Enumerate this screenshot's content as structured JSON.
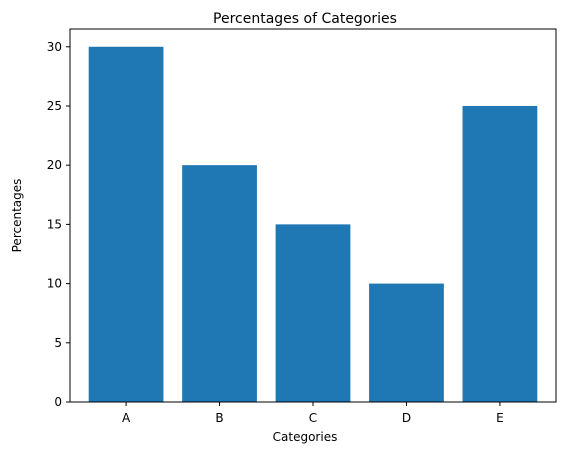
{
  "chart_data": {
    "type": "bar",
    "title": "Percentages of Categories",
    "xlabel": "Categories",
    "ylabel": "Percentages",
    "categories": [
      "A",
      "B",
      "C",
      "D",
      "E"
    ],
    "values": [
      30,
      20,
      15,
      10,
      25
    ],
    "ylim": [
      0,
      31.5
    ],
    "yticks": [
      0,
      5,
      10,
      15,
      20,
      25,
      30
    ],
    "grid": false,
    "colors": {
      "bar": "#1f77b4",
      "axis": "#000000",
      "background": "#ffffff"
    }
  }
}
